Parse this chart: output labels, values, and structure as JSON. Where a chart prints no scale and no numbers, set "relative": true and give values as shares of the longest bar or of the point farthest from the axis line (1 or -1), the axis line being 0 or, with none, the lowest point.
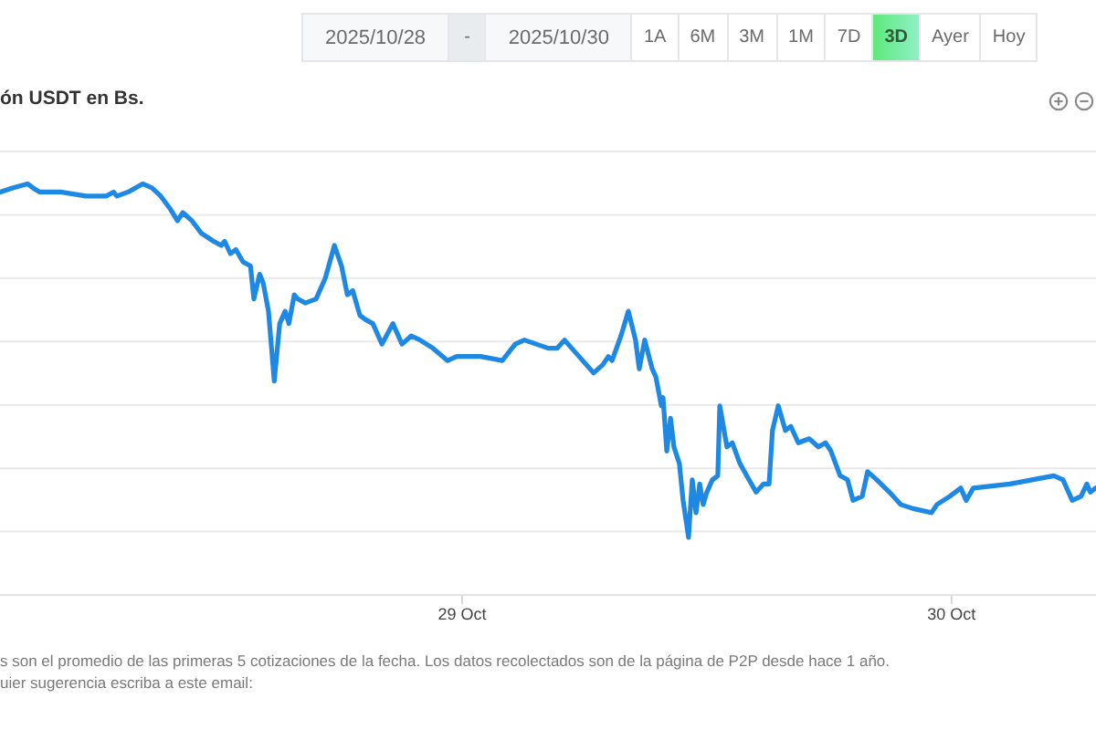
{
  "chart_data": [
    {
      "type": "other",
      "annotations": [
        "2025/10/28",
        "-",
        "2025/10/30",
        "1A",
        "6M",
        "3M",
        "1M",
        "7D",
        "3D",
        "Ayer",
        "Hoy"
      ]
    },
    {
      "type": "line",
      "title": "ón USDT en Bs.",
      "annotations": [
        "s son el promedio de las primeras 5 cotizaciones de la fecha. Los datos recolectados son de la página de P2P desde hace 1 año.",
        "uier sugerencia escriba a este email:"
      ],
      "relative": true,
      "color": "#1e88e5",
      "grid": "y",
      "xlim": [
        "2025-10-28T01:20",
        "2025-10-30T07:05"
      ],
      "xticks": [
        {
          "value": "2025-10-29T00:00",
          "label": "29 Oct"
        },
        {
          "value": "2025-10-30T00:00",
          "label": "30 Oct"
        }
      ],
      "x": [
        "2025-10-28T01:21",
        "2025-10-28T01:57",
        "2025-10-28T02:41",
        "2025-10-28T02:57",
        "2025-10-28T03:17",
        "2025-10-28T04:18",
        "2025-10-28T05:33",
        "2025-10-28T06:32",
        "2025-10-28T06:54",
        "2025-10-28T07:04",
        "2025-10-28T07:37",
        "2025-10-28T08:20",
        "2025-10-28T08:47",
        "2025-10-28T09:13",
        "2025-10-28T09:40",
        "2025-10-28T10:02",
        "2025-10-28T10:18",
        "2025-10-28T10:45",
        "2025-10-28T11:12",
        "2025-10-28T11:49",
        "2025-10-28T12:11",
        "2025-10-28T12:21",
        "2025-10-28T12:38",
        "2025-10-28T12:54",
        "2025-10-28T13:15",
        "2025-10-28T13:37",
        "2025-10-28T13:47",
        "2025-10-28T14:04",
        "2025-10-28T14:14",
        "2025-10-28T14:30",
        "2025-10-28T14:47",
        "2025-10-28T15:03",
        "2025-10-28T15:19",
        "2025-10-28T15:30",
        "2025-10-28T15:46",
        "2025-10-28T15:56",
        "2025-10-28T16:18",
        "2025-10-28T16:50",
        "2025-10-28T17:17",
        "2025-10-28T17:44",
        "2025-10-28T18:05",
        "2025-10-28T18:22",
        "2025-10-28T18:38",
        "2025-10-28T18:59",
        "2025-10-28T19:15",
        "2025-10-28T19:37",
        "2025-10-28T20:04",
        "2025-10-28T20:36",
        "2025-10-28T21:03",
        "2025-10-28T21:30",
        "2025-10-28T21:56",
        "2025-10-28T22:34",
        "2025-10-28T23:17",
        "2025-10-28T23:44",
        "2025-10-29T00:54",
        "2025-10-29T01:58",
        "2025-10-29T02:36",
        "2025-10-29T03:03",
        "2025-10-29T04:13",
        "2025-10-29T04:39",
        "2025-10-29T05:01",
        "2025-10-29T05:33",
        "2025-10-29T06:27",
        "2025-10-29T06:54",
        "2025-10-29T07:10",
        "2025-10-29T07:21",
        "2025-10-29T07:47",
        "2025-10-29T08:09",
        "2025-10-29T08:30",
        "2025-10-29T08:41",
        "2025-10-29T08:57",
        "2025-10-29T09:19",
        "2025-10-29T09:30",
        "2025-10-29T09:46",
        "2025-10-29T09:51",
        "2025-10-29T10:02",
        "2025-10-29T10:13",
        "2025-10-29T10:23",
        "2025-10-29T10:39",
        "2025-10-29T10:50",
        "2025-10-29T11:06",
        "2025-10-29T11:17",
        "2025-10-29T11:28",
        "2025-10-29T11:39",
        "2025-10-29T11:49",
        "2025-10-29T12:00",
        "2025-10-29T12:16",
        "2025-10-29T12:32",
        "2025-10-29T12:38",
        "2025-10-29T12:59",
        "2025-10-29T13:15",
        "2025-10-29T13:37",
        "2025-10-29T14:04",
        "2025-10-29T14:25",
        "2025-10-29T14:47",
        "2025-10-29T15:03",
        "2025-10-29T15:13",
        "2025-10-29T15:30",
        "2025-10-29T15:51",
        "2025-10-29T16:07",
        "2025-10-29T16:29",
        "2025-10-29T17:01",
        "2025-10-29T17:28",
        "2025-10-29T17:49",
        "2025-10-29T18:05",
        "2025-10-29T18:32",
        "2025-10-29T18:54",
        "2025-10-29T19:10",
        "2025-10-29T19:37",
        "2025-10-29T19:53",
        "2025-10-29T20:20",
        "2025-10-29T20:57",
        "2025-10-29T21:30",
        "2025-10-29T22:07",
        "2025-10-29T23:01",
        "2025-10-29T23:17",
        "2025-10-29T23:55",
        "2025-10-30T00:27",
        "2025-10-30T00:43",
        "2025-10-30T01:04",
        "2025-10-30T02:52",
        "2025-10-30T05:01",
        "2025-10-30T05:28",
        "2025-10-30T05:55",
        "2025-10-30T06:21",
        "2025-10-30T06:38",
        "2025-10-30T06:48",
        "2025-10-30T07:04"
      ],
      "values": [
        0.98,
        0.99,
        1,
        0.99,
        0.98,
        0.98,
        0.97,
        0.97,
        0.98,
        0.97,
        0.98,
        1,
        0.99,
        0.97,
        0.94,
        0.91,
        0.93,
        0.91,
        0.88,
        0.86,
        0.85,
        0.86,
        0.83,
        0.84,
        0.81,
        0.8,
        0.72,
        0.78,
        0.76,
        0.69,
        0.52,
        0.66,
        0.69,
        0.66,
        0.73,
        0.72,
        0.71,
        0.72,
        0.77,
        0.85,
        0.8,
        0.73,
        0.74,
        0.68,
        0.67,
        0.66,
        0.61,
        0.66,
        0.61,
        0.63,
        0.62,
        0.6,
        0.57,
        0.58,
        0.58,
        0.57,
        0.61,
        0.62,
        0.6,
        0.6,
        0.62,
        0.59,
        0.54,
        0.56,
        0.58,
        0.57,
        0.63,
        0.69,
        0.62,
        0.55,
        0.62,
        0.55,
        0.53,
        0.46,
        0.48,
        0.35,
        0.43,
        0.36,
        0.32,
        0.23,
        0.14,
        0.28,
        0.2,
        0.27,
        0.22,
        0.25,
        0.28,
        0.29,
        0.46,
        0.36,
        0.37,
        0.32,
        0.28,
        0.25,
        0.27,
        0.27,
        0.4,
        0.46,
        0.4,
        0.41,
        0.37,
        0.38,
        0.36,
        0.37,
        0.35,
        0.29,
        0.28,
        0.23,
        0.24,
        0.3,
        0.28,
        0.25,
        0.22,
        0.21,
        0.2,
        0.22,
        0.24,
        0.26,
        0.23,
        0.26,
        0.27,
        0.29,
        0.28,
        0.23,
        0.24,
        0.27,
        0.25,
        0.26
      ]
    }
  ]
}
